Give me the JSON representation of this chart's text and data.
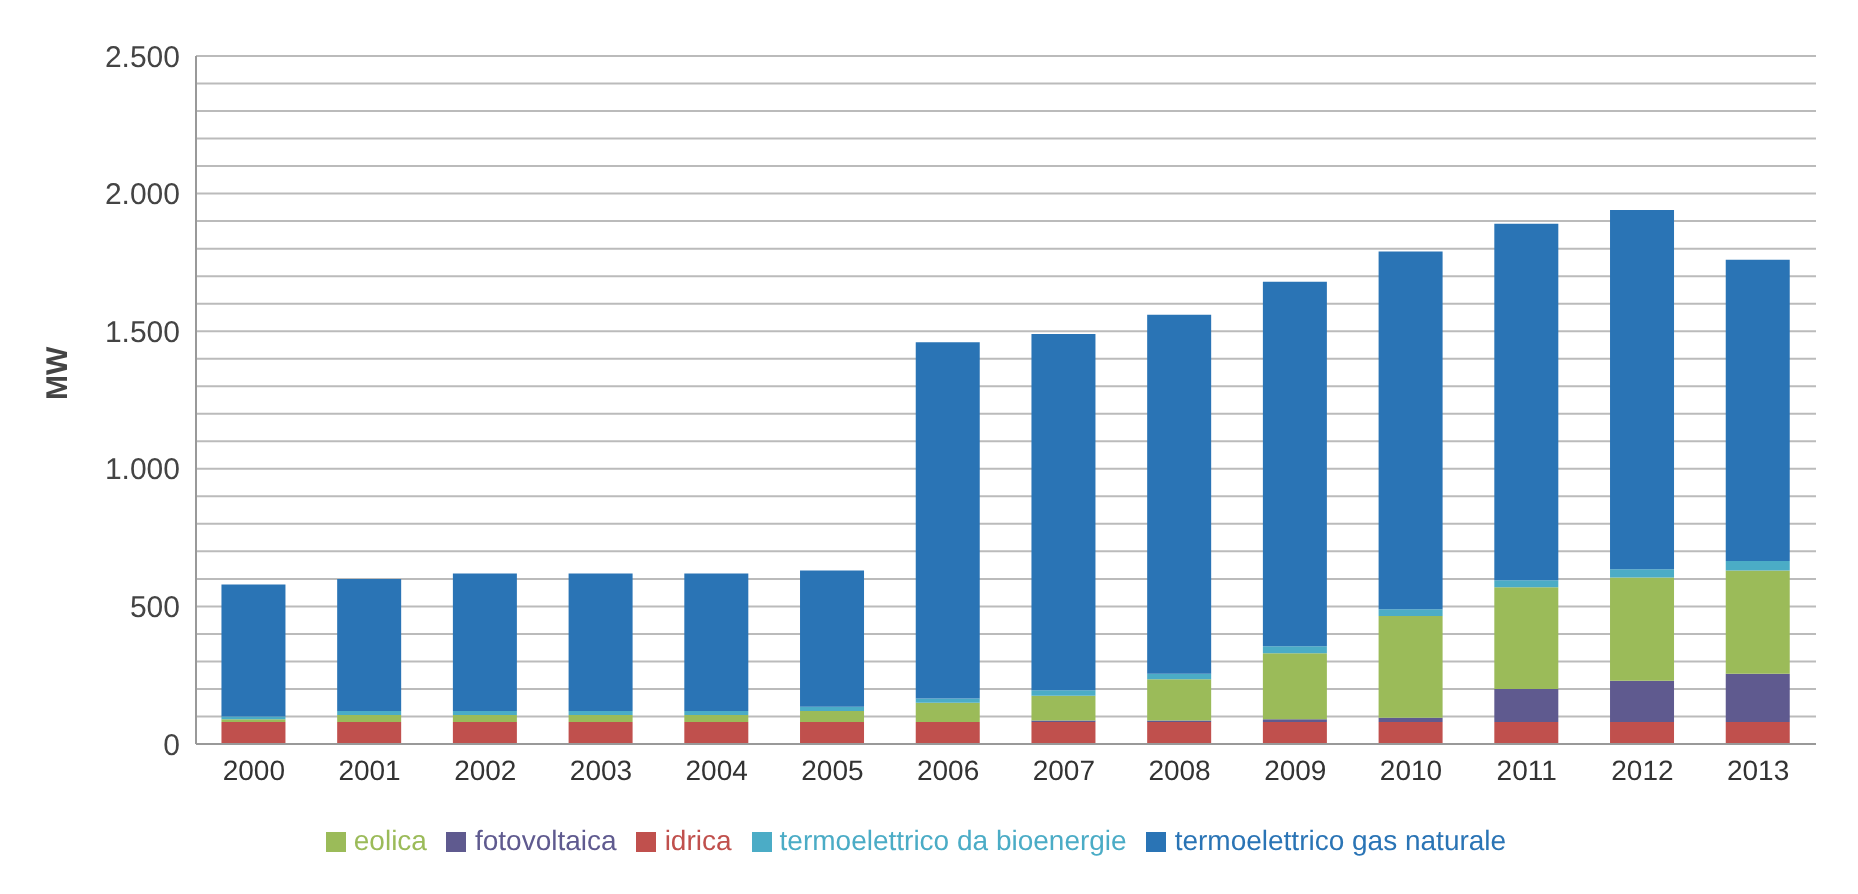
{
  "chart_data": {
    "type": "bar",
    "stacked": true,
    "ylabel": "MW",
    "categories": [
      "2000",
      "2001",
      "2002",
      "2003",
      "2004",
      "2005",
      "2006",
      "2007",
      "2008",
      "2009",
      "2010",
      "2011",
      "2012",
      "2013"
    ],
    "series": [
      {
        "name": "idrica",
        "color": "#c0504d",
        "values": [
          80,
          80,
          80,
          80,
          80,
          80,
          80,
          80,
          80,
          80,
          80,
          80,
          80,
          80
        ]
      },
      {
        "name": "fotovoltaica",
        "color": "#5f5a8f",
        "values": [
          0,
          0,
          0,
          0,
          0,
          0,
          0,
          5,
          5,
          10,
          15,
          120,
          150,
          175
        ]
      },
      {
        "name": "eolica",
        "color": "#9bbb59",
        "values": [
          10,
          25,
          25,
          25,
          25,
          40,
          70,
          90,
          150,
          240,
          370,
          370,
          375,
          375
        ]
      },
      {
        "name": "termoelettrico da bioenergie",
        "color": "#4bacc6",
        "values": [
          10,
          15,
          15,
          15,
          15,
          15,
          15,
          20,
          20,
          25,
          25,
          25,
          30,
          35
        ]
      },
      {
        "name": "termoelettrico gas naturale",
        "color": "#2a74b5",
        "values": [
          480,
          480,
          500,
          500,
          500,
          495,
          1295,
          1295,
          1305,
          1325,
          1300,
          1295,
          1305,
          1095
        ]
      }
    ],
    "ylim": [
      0,
      2500
    ],
    "yticks": [
      {
        "value": 0,
        "label": "0"
      },
      {
        "value": 100,
        "label": null
      },
      {
        "value": 200,
        "label": null
      },
      {
        "value": 300,
        "label": null
      },
      {
        "value": 400,
        "label": null
      },
      {
        "value": 500,
        "label": "500"
      },
      {
        "value": 600,
        "label": null
      },
      {
        "value": 700,
        "label": null
      },
      {
        "value": 800,
        "label": null
      },
      {
        "value": 900,
        "label": null
      },
      {
        "value": 1000,
        "label": "1.000"
      },
      {
        "value": 1100,
        "label": null
      },
      {
        "value": 1200,
        "label": null
      },
      {
        "value": 1300,
        "label": null
      },
      {
        "value": 1400,
        "label": null
      },
      {
        "value": 1500,
        "label": "1.500"
      },
      {
        "value": 1600,
        "label": null
      },
      {
        "value": 1700,
        "label": null
      },
      {
        "value": 1800,
        "label": null
      },
      {
        "value": 1900,
        "label": null
      },
      {
        "value": 2000,
        "label": "2.000"
      },
      {
        "value": 2100,
        "label": null
      },
      {
        "value": 2200,
        "label": null
      },
      {
        "value": 2300,
        "label": null
      },
      {
        "value": 2400,
        "label": null
      },
      {
        "value": 2500,
        "label": "2.500"
      }
    ],
    "grid": "y",
    "legend": "bottom"
  }
}
